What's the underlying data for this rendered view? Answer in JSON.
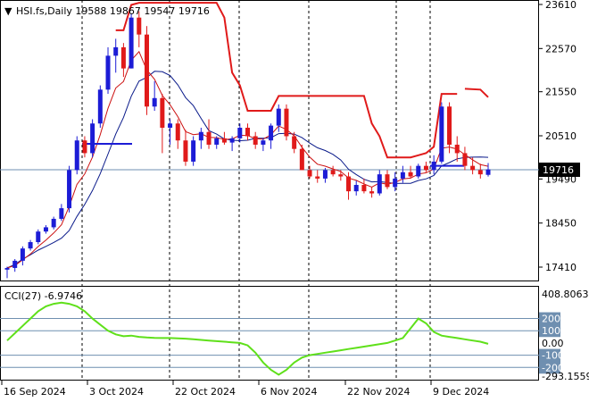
{
  "header": {
    "title": "HSI.fs,Daily  19588 19867 19547 19716",
    "cci_label": "CCI(27) -6.9746"
  },
  "colors": {
    "up": "#1c1cd6",
    "down": "#e01a1a",
    "ma_fast": "#cc1111",
    "ma_slow": "#0a1a8a",
    "stop": "#e01a1a",
    "stop_blue": "#1c1cd6",
    "cci": "#5fe01a",
    "grid": "#000000",
    "level_line": "#6f8fb0",
    "badge": "#6f8fb0"
  },
  "price_axis": {
    "ticks": [
      "23610",
      "22570",
      "21550",
      "20510",
      "19490",
      "18450",
      "17410"
    ],
    "current": "19716"
  },
  "cci_axis": {
    "max": "408.8063",
    "levels": [
      "200",
      "100",
      "0.00",
      "-100",
      "-200"
    ],
    "min": "-293.1559"
  },
  "dates": [
    "16 Sep 2024",
    "3 Oct 2024",
    "22 Oct 2024",
    "6 Nov 2024",
    "22 Nov 2024",
    "9 Dec 2024"
  ],
  "chart_data": {
    "type": "candlestick",
    "symbol": "HSI.fs",
    "timeframe": "Daily",
    "ohlc_last": {
      "open": 19588,
      "high": 19867,
      "low": 19547,
      "close": 19716
    },
    "ylim": [
      17000,
      23700
    ],
    "candles": [
      [
        17350,
        17420,
        17150,
        17390
      ],
      [
        17390,
        17600,
        17300,
        17560
      ],
      [
        17560,
        17900,
        17450,
        17850
      ],
      [
        17850,
        18050,
        17800,
        18000
      ],
      [
        18000,
        18300,
        17950,
        18250
      ],
      [
        18250,
        18400,
        18200,
        18350
      ],
      [
        18350,
        18600,
        18300,
        18550
      ],
      [
        18550,
        18900,
        18500,
        18800
      ],
      [
        18800,
        19800,
        18700,
        19700
      ],
      [
        19700,
        20500,
        19600,
        20400
      ],
      [
        20400,
        20500,
        20000,
        20100
      ],
      [
        20100,
        20900,
        20000,
        20800
      ],
      [
        20800,
        21700,
        20700,
        21600
      ],
      [
        21600,
        22600,
        21500,
        22400
      ],
      [
        22400,
        22800,
        22000,
        22600
      ],
      [
        22600,
        22700,
        21900,
        22100
      ],
      [
        22100,
        23400,
        22100,
        23300
      ],
      [
        23300,
        23450,
        22600,
        22900
      ],
      [
        22900,
        23100,
        21000,
        21200
      ],
      [
        21200,
        21800,
        21100,
        21400
      ],
      [
        21400,
        21500,
        20100,
        20700
      ],
      [
        20700,
        20900,
        20300,
        20800
      ],
      [
        20800,
        20900,
        20200,
        20400
      ],
      [
        20400,
        20650,
        19800,
        19900
      ],
      [
        19900,
        20500,
        19800,
        20400
      ],
      [
        20400,
        20700,
        20200,
        20600
      ],
      [
        20600,
        20900,
        20200,
        20300
      ],
      [
        20300,
        20500,
        20200,
        20450
      ],
      [
        20450,
        20600,
        20300,
        20350
      ],
      [
        20350,
        20500,
        20150,
        20450
      ],
      [
        20450,
        20800,
        20350,
        20700
      ],
      [
        20700,
        20800,
        20400,
        20500
      ],
      [
        20500,
        20600,
        20200,
        20300
      ],
      [
        20300,
        20450,
        20150,
        20400
      ],
      [
        20400,
        20800,
        20200,
        20750
      ],
      [
        20750,
        21250,
        20600,
        21150
      ],
      [
        21150,
        21250,
        20400,
        20500
      ],
      [
        20500,
        20600,
        20100,
        20200
      ],
      [
        20200,
        20300,
        19700,
        19700
      ],
      [
        19700,
        19800,
        19500,
        19550
      ],
      [
        19550,
        19700,
        19400,
        19500
      ],
      [
        19500,
        19750,
        19400,
        19700
      ],
      [
        19700,
        19800,
        19550,
        19600
      ],
      [
        19600,
        19700,
        19450,
        19550
      ],
      [
        19550,
        19650,
        19000,
        19200
      ],
      [
        19200,
        19450,
        19100,
        19350
      ],
      [
        19350,
        19500,
        19150,
        19200
      ],
      [
        19200,
        19300,
        19050,
        19150
      ],
      [
        19150,
        19700,
        19100,
        19600
      ],
      [
        19600,
        19700,
        19250,
        19300
      ],
      [
        19300,
        19650,
        19200,
        19500
      ],
      [
        19500,
        19800,
        19400,
        19650
      ],
      [
        19650,
        19800,
        19500,
        19550
      ],
      [
        19550,
        19850,
        19500,
        19800
      ],
      [
        19800,
        19900,
        19650,
        19700
      ],
      [
        19700,
        20050,
        19600,
        19900
      ],
      [
        19900,
        21300,
        19850,
        21200
      ],
      [
        21200,
        21300,
        20100,
        20300
      ],
      [
        20300,
        20500,
        19900,
        20100
      ],
      [
        20100,
        20250,
        19700,
        19800
      ],
      [
        19800,
        20000,
        19600,
        19700
      ],
      [
        19700,
        19850,
        19500,
        19600
      ],
      [
        19588,
        19867,
        19547,
        19716
      ]
    ],
    "cci_values": [
      20,
      80,
      140,
      200,
      260,
      300,
      320,
      330,
      320,
      300,
      260,
      200,
      150,
      100,
      70,
      55,
      60,
      50,
      45,
      42,
      40,
      40,
      38,
      35,
      30,
      25,
      20,
      15,
      10,
      5,
      0,
      -20,
      -80,
      -160,
      -220,
      -260,
      -220,
      -160,
      -120,
      -100,
      -90,
      -80,
      -70,
      -60,
      -50,
      -40,
      -30,
      -20,
      -10,
      0,
      20,
      40,
      120,
      200,
      160,
      90,
      60,
      50,
      40,
      30,
      20,
      10,
      -7
    ]
  }
}
